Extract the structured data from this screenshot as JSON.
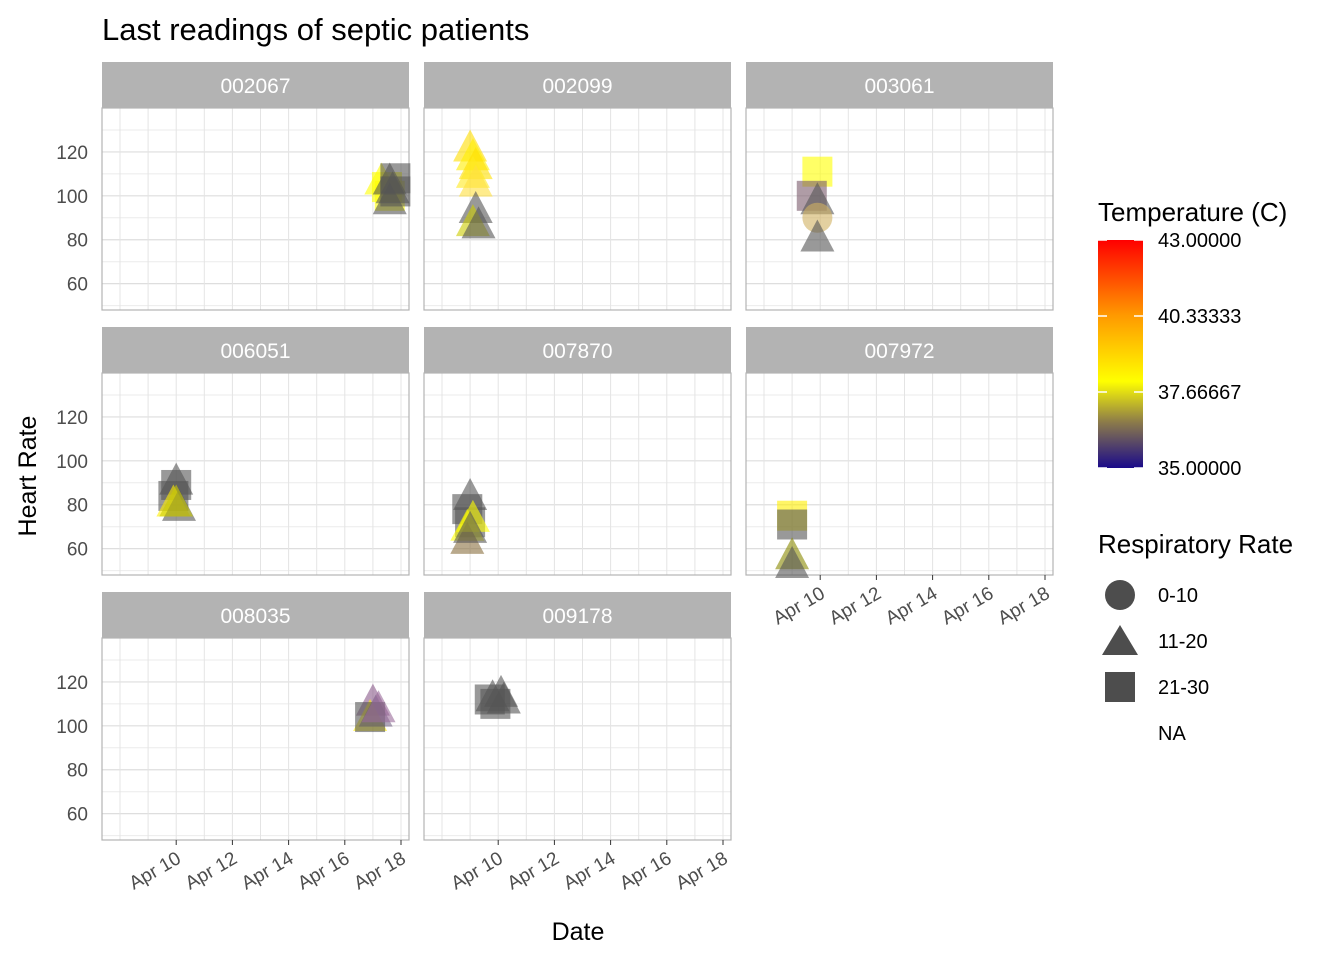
{
  "chart_data": {
    "type": "scatter",
    "title": "Last readings of septic patients",
    "xlabel": "Date",
    "ylabel": "Heart Rate",
    "x_tick_labels": [
      "Apr 10",
      "Apr 12",
      "Apr 14",
      "Apr 16",
      "Apr 18"
    ],
    "x_tick_values": [
      "2020-04-10",
      "2020-04-12",
      "2020-04-14",
      "2020-04-16",
      "2020-04-18"
    ],
    "x_range": [
      "2020-04-08",
      "2020-04-18"
    ],
    "y_ticks": [
      60,
      80,
      100,
      120
    ],
    "ylim": [
      48,
      140
    ],
    "grid": true,
    "color_legend": {
      "title": "Temperature (C)",
      "range": [
        35,
        43
      ],
      "labels": [
        "43.00000",
        "40.33333",
        "37.66667",
        "35.00000"
      ],
      "label_values": [
        43,
        40.33333,
        37.66667,
        35
      ],
      "gradient_colors": [
        "#ff0000",
        "#ff8000",
        "#ffff00",
        "#8b7a4a",
        "#1a0a8a"
      ]
    },
    "shape_legend": {
      "title": "Respiratory Rate",
      "entries": [
        {
          "label": "0-10",
          "shape": "circle"
        },
        {
          "label": "11-20",
          "shape": "triangle"
        },
        {
          "label": "21-30",
          "shape": "square"
        },
        {
          "label": "NA",
          "shape": "none"
        }
      ]
    },
    "panels": [
      {
        "id": "002067",
        "points": [
          {
            "x": "2020-04-17.3",
            "y": 107,
            "shape": "triangle",
            "color": "#ffff00"
          },
          {
            "x": "2020-04-17.5",
            "y": 104,
            "shape": "square",
            "color": "#ffff00"
          },
          {
            "x": "2020-04-17.6",
            "y": 100,
            "shape": "square",
            "color": "#ffff00"
          },
          {
            "x": "2020-04-17.6",
            "y": 107,
            "shape": "triangle",
            "color": "#555555"
          },
          {
            "x": "2020-04-17.7",
            "y": 103,
            "shape": "triangle",
            "color": "#555555"
          },
          {
            "x": "2020-04-17.6",
            "y": 98,
            "shape": "triangle",
            "color": "#555555"
          },
          {
            "x": "2020-04-17.8",
            "y": 108,
            "shape": "square",
            "color": "#555555"
          },
          {
            "x": "2020-04-17.8",
            "y": 102,
            "shape": "square",
            "color": "#555555"
          }
        ]
      },
      {
        "id": "002099",
        "points": [
          {
            "x": "2020-04-09.0",
            "y": 122,
            "shape": "triangle",
            "color": "#ffdd00"
          },
          {
            "x": "2020-04-09.1",
            "y": 118,
            "shape": "triangle",
            "color": "#ffee00"
          },
          {
            "x": "2020-04-09.2",
            "y": 114,
            "shape": "triangle",
            "color": "#ffe000"
          },
          {
            "x": "2020-04-09.1",
            "y": 110,
            "shape": "triangle",
            "color": "#ffea20"
          },
          {
            "x": "2020-04-09.2",
            "y": 106,
            "shape": "triangle",
            "color": "#ffe040"
          },
          {
            "x": "2020-04-09.2",
            "y": 94,
            "shape": "triangle",
            "color": "#555555"
          },
          {
            "x": "2020-04-09.1",
            "y": 88,
            "shape": "triangle",
            "color": "#cccc00"
          },
          {
            "x": "2020-04-09.3",
            "y": 87,
            "shape": "triangle",
            "color": "#555555"
          }
        ]
      },
      {
        "id": "003061",
        "points": [
          {
            "x": "2020-04-09.9",
            "y": 111,
            "shape": "square",
            "color": "#ffff00"
          },
          {
            "x": "2020-04-09.7",
            "y": 100,
            "shape": "square",
            "color": "#7a5a6a"
          },
          {
            "x": "2020-04-09.9",
            "y": 98,
            "shape": "triangle",
            "color": "#555555"
          },
          {
            "x": "2020-04-09.9",
            "y": 90,
            "shape": "circle",
            "color": "#d0b060"
          },
          {
            "x": "2020-04-09.9",
            "y": 81,
            "shape": "triangle",
            "color": "#555555"
          }
        ]
      },
      {
        "id": "006051",
        "points": [
          {
            "x": "2020-04-09.9",
            "y": 84,
            "shape": "square",
            "color": "#555555"
          },
          {
            "x": "2020-04-10.0",
            "y": 89,
            "shape": "square",
            "color": "#555555"
          },
          {
            "x": "2020-04-10.0",
            "y": 91,
            "shape": "triangle",
            "color": "#555555"
          },
          {
            "x": "2020-04-09.9",
            "y": 81,
            "shape": "triangle",
            "color": "#ffee00"
          },
          {
            "x": "2020-04-10.1",
            "y": 79,
            "shape": "triangle",
            "color": "#555555"
          },
          {
            "x": "2020-04-10.0",
            "y": 81,
            "shape": "triangle",
            "color": "#cccc00"
          }
        ]
      },
      {
        "id": "007870",
        "points": [
          {
            "x": "2020-04-09.0",
            "y": 84,
            "shape": "triangle",
            "color": "#555555"
          },
          {
            "x": "2020-04-08.9",
            "y": 78,
            "shape": "square",
            "color": "#555555"
          },
          {
            "x": "2020-04-09.0",
            "y": 72,
            "shape": "square",
            "color": "#555555"
          },
          {
            "x": "2020-04-08.9",
            "y": 70,
            "shape": "triangle",
            "color": "#ffff00"
          },
          {
            "x": "2020-04-08.9",
            "y": 64,
            "shape": "triangle",
            "color": "#8a7040"
          },
          {
            "x": "2020-04-09.1",
            "y": 74,
            "shape": "triangle",
            "color": "#ffff00"
          },
          {
            "x": "2020-04-09.0",
            "y": 69,
            "shape": "triangle",
            "color": "#555555"
          }
        ]
      },
      {
        "id": "007972",
        "points": [
          {
            "x": "2020-04-09.0",
            "y": 75,
            "shape": "square",
            "color": "#ffee00"
          },
          {
            "x": "2020-04-09.0",
            "y": 71,
            "shape": "square",
            "color": "#555555"
          },
          {
            "x": "2020-04-09.0",
            "y": 57,
            "shape": "triangle",
            "color": "#888800"
          },
          {
            "x": "2020-04-09.0",
            "y": 53,
            "shape": "triangle",
            "color": "#555555"
          }
        ]
      },
      {
        "id": "008035",
        "points": [
          {
            "x": "2020-04-17.0",
            "y": 111,
            "shape": "triangle",
            "color": "#8a5a8a"
          },
          {
            "x": "2020-04-16.9",
            "y": 104,
            "shape": "triangle",
            "color": "#ffee00"
          },
          {
            "x": "2020-04-17.1",
            "y": 106,
            "shape": "triangle",
            "color": "#7a6a8a"
          },
          {
            "x": "2020-04-16.9",
            "y": 104,
            "shape": "square",
            "color": "#555555"
          },
          {
            "x": "2020-04-17.2",
            "y": 108,
            "shape": "triangle",
            "color": "#9a6a9a"
          }
        ]
      },
      {
        "id": "009178",
        "points": [
          {
            "x": "2020-04-09.7",
            "y": 112,
            "shape": "square",
            "color": "#555555"
          },
          {
            "x": "2020-04-09.9",
            "y": 110,
            "shape": "square",
            "color": "#555555"
          },
          {
            "x": "2020-04-10.1",
            "y": 115,
            "shape": "triangle",
            "color": "#555555"
          },
          {
            "x": "2020-04-10.2",
            "y": 112,
            "shape": "triangle",
            "color": "#555555"
          },
          {
            "x": "2020-04-09.8",
            "y": 113,
            "shape": "triangle",
            "color": "#555555"
          }
        ]
      }
    ]
  }
}
